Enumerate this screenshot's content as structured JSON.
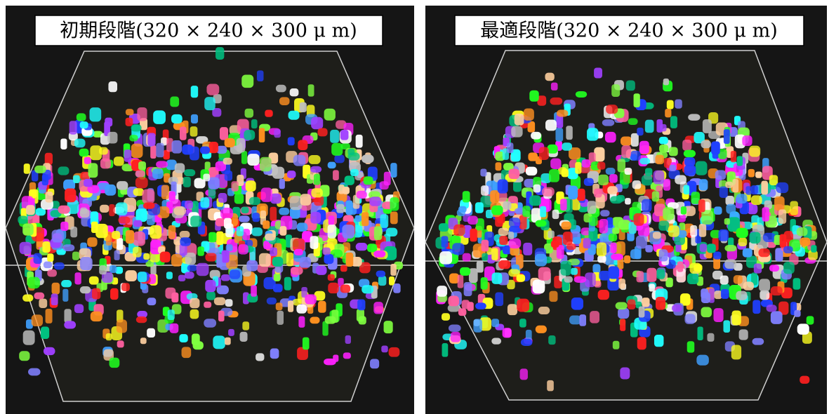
{
  "panels": [
    {
      "label": "初期段階(320 × 240 × 300 μ m)"
    },
    {
      "label": "最適段階(320 × 240 × 300 μ m)"
    }
  ]
}
